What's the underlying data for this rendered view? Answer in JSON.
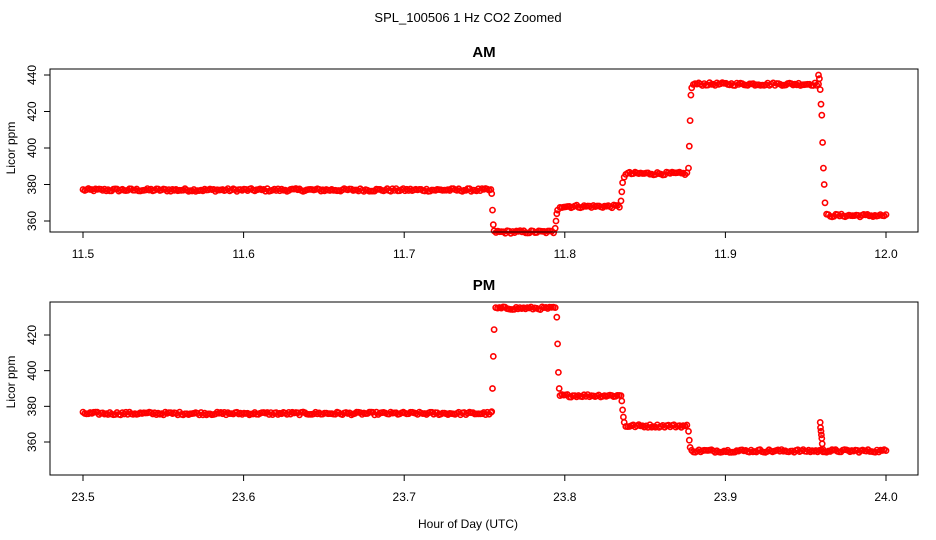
{
  "figure": {
    "title": "SPL_100506  1 Hz CO2 Zoomed",
    "xlabel": "Hour of Day (UTC)",
    "colors": {
      "points": "#ff0000",
      "axes": "#000000",
      "background": "#ffffff"
    }
  },
  "chart_data": [
    {
      "type": "scatter",
      "title": "AM",
      "xlabel": "Hour of Day (UTC)",
      "ylabel": "Licor ppm",
      "xlim": [
        11.5,
        12.0
      ],
      "ylim": [
        353,
        442
      ],
      "xticks": [
        11.5,
        11.6,
        11.7,
        11.8,
        11.9,
        12.0
      ],
      "xtick_labels": [
        "11.5",
        "11.6",
        "11.7",
        "11.8",
        "11.9",
        "12.0"
      ],
      "yticks": [
        360,
        380,
        400,
        420,
        440
      ],
      "ytick_labels": [
        "360",
        "380",
        "400",
        "420",
        "440"
      ],
      "grid": false,
      "marker": "open-circle",
      "color": "#ff0000",
      "segments": [
        {
          "x_start": 11.5,
          "x_end": 11.754,
          "y": 377
        },
        {
          "x_start": 11.756,
          "x_end": 11.793,
          "y": 354
        },
        {
          "x_start": 11.797,
          "x_end": 11.834,
          "y": 368
        },
        {
          "x_start": 11.838,
          "x_end": 11.876,
          "y": 386
        },
        {
          "x_start": 11.88,
          "x_end": 11.958,
          "y": 435
        },
        {
          "x_start": 11.963,
          "x_end": 12.0,
          "y": 363
        }
      ],
      "transitions": [
        {
          "x": [
            11.7545,
            11.755,
            11.7555
          ],
          "y": [
            375,
            366,
            358
          ]
        },
        {
          "x": [
            11.794,
            11.7945,
            11.795,
            11.7955
          ],
          "y": [
            356,
            360,
            364,
            366
          ]
        },
        {
          "x": [
            11.835,
            11.8355,
            11.836,
            11.837
          ],
          "y": [
            371,
            376,
            381,
            384
          ]
        },
        {
          "x": [
            11.877,
            11.8775,
            11.878,
            11.8785,
            11.879
          ],
          "y": [
            389,
            401,
            415,
            429,
            433
          ]
        },
        {
          "x": [
            11.958,
            11.9585,
            11.959,
            11.9595,
            11.96,
            11.9605,
            11.961,
            11.9615,
            11.962
          ],
          "y": [
            440,
            438,
            432,
            424,
            418,
            403,
            389,
            380,
            370
          ]
        }
      ]
    },
    {
      "type": "scatter",
      "title": "PM",
      "xlabel": "Hour of Day (UTC)",
      "ylabel": "Licor ppm",
      "xlim": [
        23.5,
        24.0
      ],
      "ylim": [
        353,
        440
      ],
      "xticks": [
        23.5,
        23.6,
        23.7,
        23.8,
        23.9,
        24.0
      ],
      "xtick_labels": [
        "23.5",
        "23.6",
        "23.7",
        "23.8",
        "23.9",
        "24.0"
      ],
      "yticks": [
        360,
        380,
        400,
        420
      ],
      "ytick_labels": [
        "360",
        "380",
        "400",
        "420"
      ],
      "grid": false,
      "marker": "open-circle",
      "color": "#ff0000",
      "segments": [
        {
          "x_start": 23.5,
          "x_end": 23.754,
          "y": 376
        },
        {
          "x_start": 23.757,
          "x_end": 23.794,
          "y": 435
        },
        {
          "x_start": 23.797,
          "x_end": 23.835,
          "y": 386
        },
        {
          "x_start": 23.838,
          "x_end": 23.876,
          "y": 369
        },
        {
          "x_start": 23.879,
          "x_end": 24.0,
          "y": 355
        }
      ],
      "transitions": [
        {
          "x": [
            23.7545,
            23.755,
            23.7555,
            23.756
          ],
          "y": [
            377,
            390,
            408,
            423
          ]
        },
        {
          "x": [
            23.795,
            23.7955,
            23.796,
            23.7965
          ],
          "y": [
            430,
            415,
            399,
            390
          ]
        },
        {
          "x": [
            23.8355,
            23.836,
            23.8365,
            23.837
          ],
          "y": [
            383,
            378,
            374,
            371
          ]
        },
        {
          "x": [
            23.877,
            23.8775,
            23.878
          ],
          "y": [
            366,
            361,
            357
          ]
        },
        {
          "x": [
            23.959,
            23.9592,
            23.9595,
            23.9598,
            23.96,
            23.9603,
            23.9606
          ],
          "y": [
            371,
            368,
            366,
            364,
            362,
            359,
            356
          ]
        }
      ]
    }
  ]
}
